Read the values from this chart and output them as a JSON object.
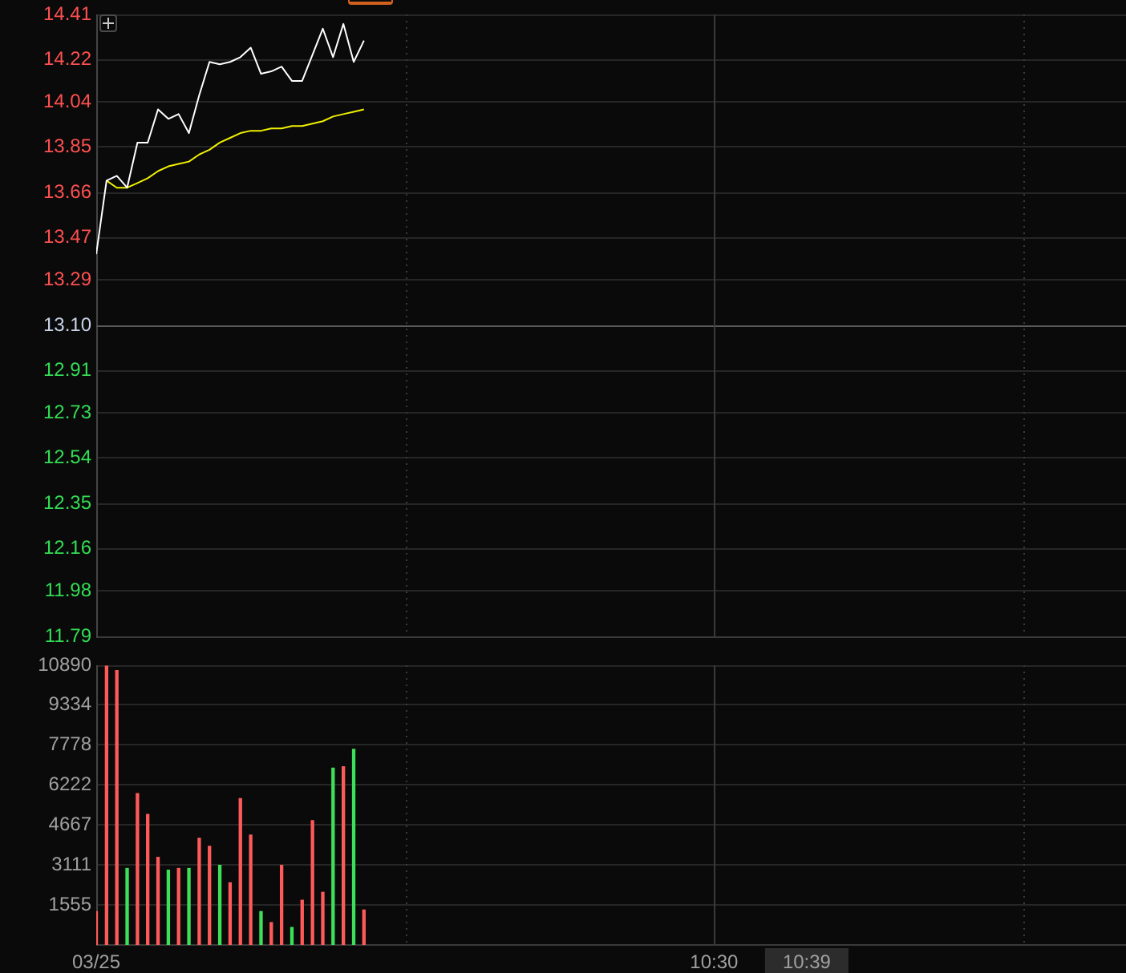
{
  "chart_data": [
    {
      "type": "line",
      "x": [
        9.5,
        9.5167,
        9.5333,
        9.55,
        9.5667,
        9.5833,
        9.6,
        9.6167,
        9.6333,
        9.65,
        9.6667,
        9.6833,
        9.7,
        9.7167,
        9.7333,
        9.75,
        9.7667,
        9.7833,
        9.8,
        9.8167,
        9.8333,
        9.85,
        9.8667,
        9.8833,
        9.9,
        9.9167,
        9.9333
      ],
      "xlim": [
        9.5,
        11.1667
      ],
      "ylim": [
        11.79,
        14.41
      ],
      "yticks": [
        11.79,
        11.98,
        12.16,
        12.35,
        12.54,
        12.73,
        12.91,
        {
          "value": 13.1,
          "label": "13.10"
        },
        13.29,
        13.47,
        13.66,
        13.85,
        14.04,
        14.22,
        14.41
      ],
      "tick_labels": "y",
      "grid": "y",
      "series": [
        {
          "color": "#ffffff",
          "values": [
            13.4,
            13.71,
            13.73,
            13.68,
            13.87,
            13.87,
            14.01,
            13.97,
            13.99,
            13.91,
            14.07,
            14.21,
            14.2,
            14.21,
            14.23,
            14.27,
            14.16,
            14.17,
            14.19,
            14.13,
            14.13,
            14.24,
            14.35,
            14.23,
            14.37,
            14.21,
            14.3
          ]
        },
        {
          "color": "#f0f000",
          "values": [
            null,
            13.71,
            13.68,
            13.68,
            13.7,
            13.72,
            13.75,
            13.77,
            13.78,
            13.79,
            13.82,
            13.84,
            13.87,
            13.89,
            13.91,
            13.92,
            13.92,
            13.93,
            13.93,
            13.94,
            13.94,
            13.95,
            13.96,
            13.98,
            13.99,
            14.0,
            14.01
          ]
        }
      ],
      "ref_lines": [
        {
          "axis": "y",
          "value": 13.1,
          "color": "#5a5a5a"
        },
        {
          "axis": "x",
          "value": 10,
          "color": "#3a3a3a",
          "line_style": "dotted"
        },
        {
          "axis": "x",
          "value": 10.5,
          "color": "#3a3a3a"
        },
        {
          "axis": "x",
          "value": 11,
          "color": "#3a3a3a",
          "line_style": "dotted"
        }
      ]
    },
    {
      "type": "bar",
      "x": [
        9.5,
        9.5167,
        9.5333,
        9.55,
        9.5667,
        9.5833,
        9.6,
        9.6167,
        9.6333,
        9.65,
        9.6667,
        9.6833,
        9.7,
        9.7167,
        9.7333,
        9.75,
        9.7667,
        9.7833,
        9.8,
        9.8167,
        9.8333,
        9.85,
        9.8667,
        9.8833,
        9.9,
        9.9167,
        9.9333
      ],
      "values": [
        1300,
        10850,
        10680,
        2980,
        5890,
        5080,
        3410,
        2910,
        2980,
        2980,
        4150,
        3840,
        3100,
        2420,
        5700,
        4280,
        1300,
        870,
        3100,
        680,
        1740,
        4840,
        2050,
        6880,
        6940,
        7620,
        1360
      ],
      "colors": [
        "#ff5a5a",
        "#ff5a5a",
        "#ff5a5a",
        "#3ee05a",
        "#ff5a5a",
        "#ff5a5a",
        "#ff5a5a",
        "#3ee05a",
        "#ff5a5a",
        "#3ee05a",
        "#ff5a5a",
        "#ff5a5a",
        "#3ee05a",
        "#ff5a5a",
        "#ff5a5a",
        "#ff5a5a",
        "#3ee05a",
        "#ff5a5a",
        "#ff5a5a",
        "#3ee05a",
        "#ff5a5a",
        "#ff5a5a",
        "#ff5a5a",
        "#3ee05a",
        "#ff5a5a",
        "#3ee05a",
        "#ff5a5a"
      ],
      "xlim": [
        9.5,
        11.1667
      ],
      "xticks": [
        {
          "value": 9.5,
          "label": "03/25"
        },
        {
          "value": 10.5,
          "label": "10:30"
        },
        {
          "value": 10.65,
          "label": "10:39"
        }
      ],
      "ylim": [
        0,
        10890
      ],
      "yticks": [
        1555,
        3111,
        4667,
        6222,
        7778,
        9334,
        10890
      ],
      "grid": "y",
      "ref_lines": [
        {
          "axis": "x",
          "value": 10,
          "color": "#3a3a3a",
          "line_style": "dotted"
        },
        {
          "axis": "x",
          "value": 10.5,
          "color": "#3a3a3a"
        },
        {
          "axis": "x",
          "value": 11,
          "color": "#3a3a3a",
          "line_style": "dotted"
        }
      ]
    }
  ]
}
